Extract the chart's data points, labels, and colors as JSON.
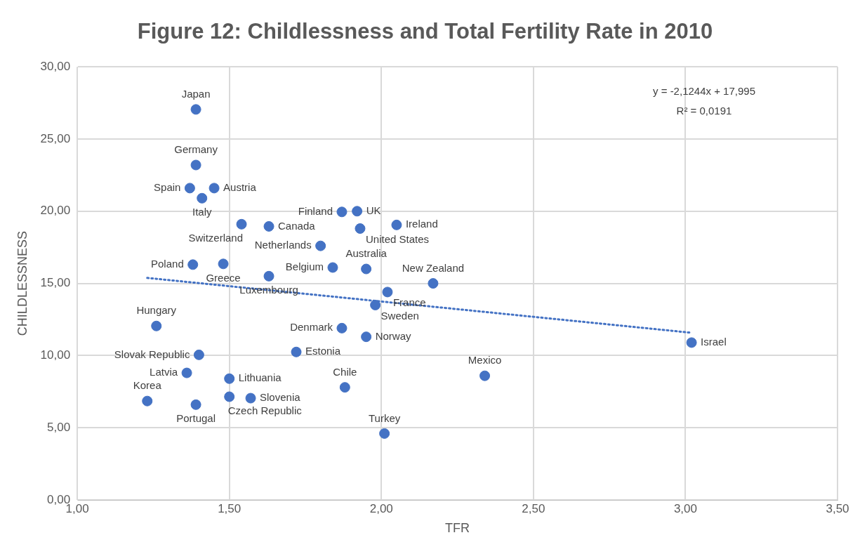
{
  "chart_data": {
    "type": "scatter",
    "title": "Figure 12: Childlessness and Total Fertility Rate in 2010",
    "xlabel": "TFR",
    "ylabel": "CHILDLESSNESS",
    "xlim": [
      1,
      3.5
    ],
    "ylim": [
      0,
      30
    ],
    "xticks": [
      {
        "value": 1,
        "label": "1,00"
      },
      {
        "value": 1.5,
        "label": "1,50"
      },
      {
        "value": 2,
        "label": "2,00"
      },
      {
        "value": 2.5,
        "label": "2,50"
      },
      {
        "value": 3,
        "label": "3,00"
      },
      {
        "value": 3.5,
        "label": "3,50"
      }
    ],
    "yticks": [
      {
        "value": 0,
        "label": "0,00"
      },
      {
        "value": 5,
        "label": "5,00"
      },
      {
        "value": 10,
        "label": "10,00"
      },
      {
        "value": 15,
        "label": "15,00"
      },
      {
        "value": 20,
        "label": "20,00"
      },
      {
        "value": 25,
        "label": "25,00"
      },
      {
        "value": 30,
        "label": "30,00"
      }
    ],
    "grid": true,
    "legend": false,
    "marker": "circle",
    "annotations": [
      "y = -2,1244x + 17,995",
      "R² = 0,0191"
    ],
    "series": [
      {
        "name": "Japan",
        "color": "#4472c4",
        "x": [
          1.39
        ],
        "values": [
          27.05
        ]
      },
      {
        "name": "Germany",
        "color": "#4472c4",
        "x": [
          1.39
        ],
        "values": [
          23.2
        ]
      },
      {
        "name": "Spain",
        "color": "#4472c4",
        "x": [
          1.37
        ],
        "values": [
          21.6
        ]
      },
      {
        "name": "Austria",
        "color": "#4472c4",
        "x": [
          1.45
        ],
        "values": [
          21.6
        ]
      },
      {
        "name": "Italy",
        "color": "#4472c4",
        "x": [
          1.41
        ],
        "values": [
          20.9
        ]
      },
      {
        "name": "Switzerland",
        "color": "#4472c4",
        "x": [
          1.54
        ],
        "values": [
          19.1
        ]
      },
      {
        "name": "Canada",
        "color": "#4472c4",
        "x": [
          1.63
        ],
        "values": [
          18.95
        ]
      },
      {
        "name": "Netherlands",
        "color": "#4472c4",
        "x": [
          1.8
        ],
        "values": [
          17.6
        ]
      },
      {
        "name": "Belgium",
        "color": "#4472c4",
        "x": [
          1.84
        ],
        "values": [
          16.1
        ]
      },
      {
        "name": "Australia",
        "color": "#4472c4",
        "x": [
          1.95
        ],
        "values": [
          16.0
        ]
      },
      {
        "name": "Luxembourg",
        "color": "#4472c4",
        "x": [
          1.63
        ],
        "values": [
          15.5
        ]
      },
      {
        "name": "Finland",
        "color": "#4472c4",
        "x": [
          1.87
        ],
        "values": [
          19.95
        ]
      },
      {
        "name": "UK",
        "color": "#4472c4",
        "x": [
          1.92
        ],
        "values": [
          20.0
        ]
      },
      {
        "name": "United States",
        "color": "#4472c4",
        "x": [
          1.93
        ],
        "values": [
          18.8
        ]
      },
      {
        "name": "Ireland",
        "color": "#4472c4",
        "x": [
          2.05
        ],
        "values": [
          19.05
        ]
      },
      {
        "name": "New Zealand",
        "color": "#4472c4",
        "x": [
          2.17
        ],
        "values": [
          15.0
        ]
      },
      {
        "name": "France",
        "color": "#4472c4",
        "x": [
          2.02
        ],
        "values": [
          14.4
        ]
      },
      {
        "name": "Sweden",
        "color": "#4472c4",
        "x": [
          1.98
        ],
        "values": [
          13.5
        ]
      },
      {
        "name": "Denmark",
        "color": "#4472c4",
        "x": [
          1.87
        ],
        "values": [
          11.9
        ]
      },
      {
        "name": "Norway",
        "color": "#4472c4",
        "x": [
          1.95
        ],
        "values": [
          11.3
        ]
      },
      {
        "name": "Estonia",
        "color": "#4472c4",
        "x": [
          1.72
        ],
        "values": [
          10.25
        ]
      },
      {
        "name": "Chile",
        "color": "#4472c4",
        "x": [
          1.88
        ],
        "values": [
          7.8
        ]
      },
      {
        "name": "Turkey",
        "color": "#4472c4",
        "x": [
          2.01
        ],
        "values": [
          4.6
        ]
      },
      {
        "name": "Mexico",
        "color": "#4472c4",
        "x": [
          2.34
        ],
        "values": [
          8.6
        ]
      },
      {
        "name": "Israel",
        "color": "#4472c4",
        "x": [
          3.02
        ],
        "values": [
          10.9
        ]
      },
      {
        "name": "Hungary",
        "color": "#4472c4",
        "x": [
          1.26
        ],
        "values": [
          12.05
        ]
      },
      {
        "name": "Slovak Republic",
        "color": "#4472c4",
        "x": [
          1.4
        ],
        "values": [
          10.05
        ]
      },
      {
        "name": "Lithuania",
        "color": "#4472c4",
        "x": [
          1.5
        ],
        "values": [
          8.4
        ]
      },
      {
        "name": "Czech Republic",
        "color": "#4472c4",
        "x": [
          1.5
        ],
        "values": [
          7.15
        ]
      },
      {
        "name": "Slovenia",
        "color": "#4472c4",
        "x": [
          1.57
        ],
        "values": [
          7.05
        ]
      },
      {
        "name": "Latvia",
        "color": "#4472c4",
        "x": [
          1.36
        ],
        "values": [
          8.8
        ]
      },
      {
        "name": "Portugal",
        "color": "#4472c4",
        "x": [
          1.39
        ],
        "values": [
          6.6
        ]
      },
      {
        "name": "Korea",
        "color": "#4472c4",
        "x": [
          1.23
        ],
        "values": [
          6.85
        ]
      },
      {
        "name": "Poland",
        "color": "#4472c4",
        "x": [
          1.38
        ],
        "values": [
          16.3
        ]
      },
      {
        "name": "Greece",
        "color": "#4472c4",
        "x": [
          1.48
        ],
        "values": [
          16.35
        ]
      },
      {
        "type": "line",
        "color": "#4472c4",
        "line_style": "dotted",
        "marker": "none",
        "x": [
          1.23,
          3.02
        ],
        "values": [
          15.38,
          11.58
        ]
      }
    ]
  }
}
